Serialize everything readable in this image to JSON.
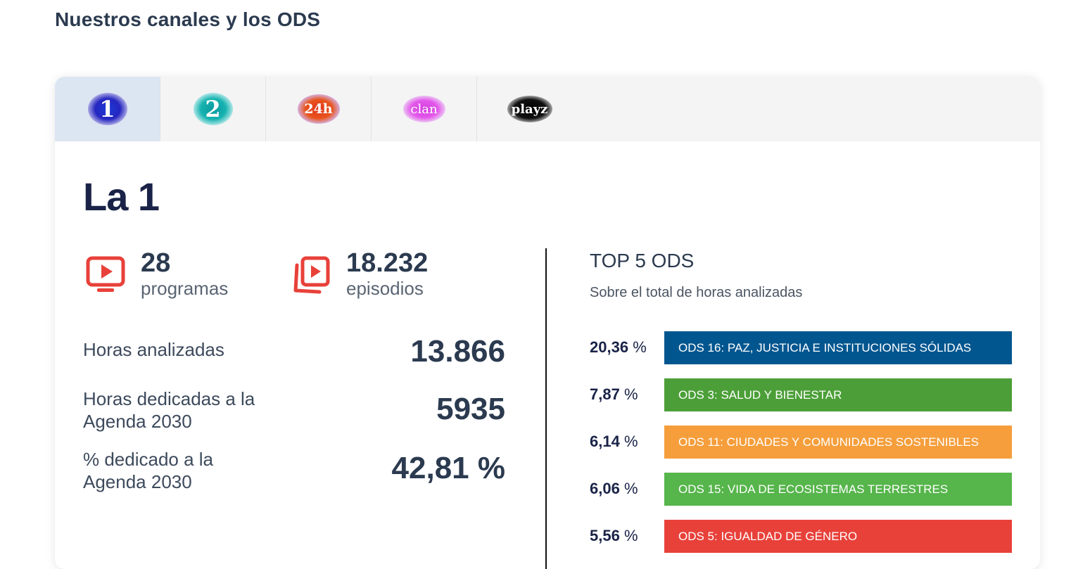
{
  "page": {
    "title": "Nuestros canales y los ODS"
  },
  "tabs": [
    {
      "label": "1",
      "channel": "La 1",
      "active": true,
      "color": "#2626c0"
    },
    {
      "label": "2",
      "channel": "La 2",
      "active": false,
      "color": "#17b3b0"
    },
    {
      "label": "24h",
      "channel": "24h",
      "active": false,
      "color": "#e8541c"
    },
    {
      "label": "clan",
      "channel": "Clan",
      "active": false,
      "color": "#e357ea"
    },
    {
      "label": "playz",
      "channel": "Playz",
      "active": false,
      "color": "#111111"
    }
  ],
  "channel": {
    "name": "La 1",
    "programs": {
      "value": "28",
      "label": "programas",
      "icon": "tv-play-icon"
    },
    "episodes": {
      "value": "18.232",
      "label": "episodios",
      "icon": "stacked-play-icon"
    },
    "metrics": [
      {
        "label": "Horas analizadas",
        "value": "13.866"
      },
      {
        "label": "Horas dedicadas a la Agenda 2030",
        "value": "5935"
      },
      {
        "label": "% dedicado a la Agenda 2030",
        "value": "42,81 %"
      }
    ]
  },
  "top_ods": {
    "title": "TOP 5 ODS",
    "subtitle": "Sobre el total de horas analizadas",
    "items": [
      {
        "pct": "20,36",
        "unit": "%",
        "label": "ODS 16: PAZ, JUSTICIA E INSTITUCIONES SÓLIDAS",
        "color": "#02568f"
      },
      {
        "pct": "7,87",
        "unit": "%",
        "label": "ODS 3: SALUD Y BIENESTAR",
        "color": "#4c9f38"
      },
      {
        "pct": "6,14",
        "unit": "%",
        "label": "ODS 11: CIUDADES Y COMUNIDADES SOSTENIBLES",
        "color": "#f59e3b"
      },
      {
        "pct": "6,06",
        "unit": "%",
        "label": "ODS 15: VIDA DE ECOSISTEMAS TERRESTRES",
        "color": "#56b54b"
      },
      {
        "pct": "5,56",
        "unit": "%",
        "label": "ODS 5: IGUALDAD DE GÉNERO",
        "color": "#e8413a"
      }
    ]
  }
}
